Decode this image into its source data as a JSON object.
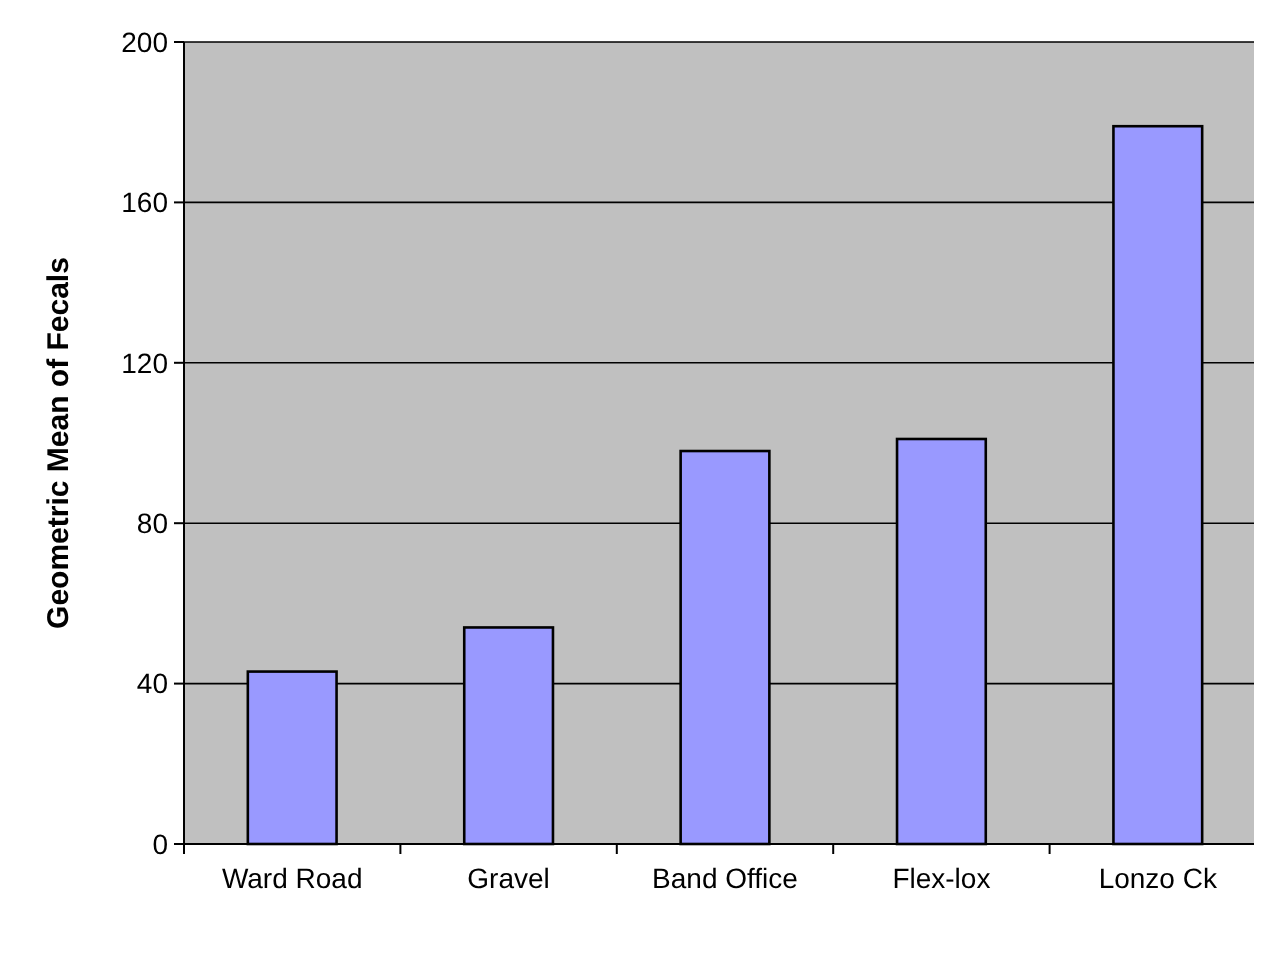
{
  "chart_data": {
    "type": "bar",
    "ylabel": "Geometric Mean of Fecals",
    "categories": [
      "Ward Road",
      "Gravel",
      "Band Office",
      "Flex-lox",
      "Lonzo Ck"
    ],
    "values": [
      43,
      54,
      98,
      101,
      179
    ],
    "color": "#9999ff",
    "ylim": [
      0,
      200
    ],
    "yticks": [
      0,
      40,
      80,
      120,
      160,
      200
    ],
    "grid": "y"
  }
}
